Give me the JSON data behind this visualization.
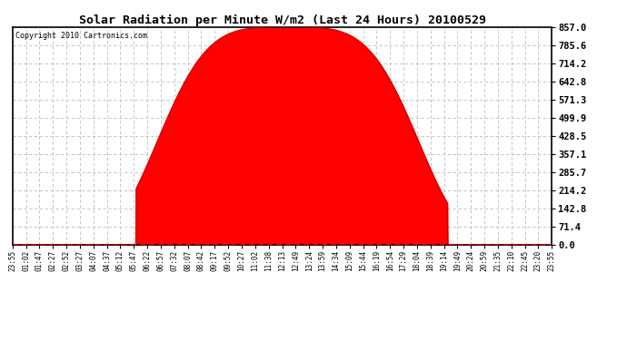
{
  "title": "Solar Radiation per Minute W/m2 (Last 24 Hours) 20100529",
  "copyright": "Copyright 2010 Cartronics.com",
  "bg_color": "#ffffff",
  "plot_bg_color": "#ffffff",
  "fill_color": "#ff0000",
  "line_color": "#cc0000",
  "dashed_line_color": "#ff0000",
  "grid_color": "#bbbbbb",
  "y_max": 857.0,
  "y_min": 0.0,
  "y_ticks": [
    0.0,
    71.4,
    142.8,
    214.2,
    285.7,
    357.1,
    428.5,
    499.9,
    571.3,
    642.8,
    714.2,
    785.6,
    857.0
  ],
  "peak_value": 857.0,
  "peak_hour": 12.25,
  "start_hour": 5.5,
  "end_hour": 19.35,
  "spike_hour": 18.65,
  "spike_value": 160.0,
  "x_tick_labels": [
    "23:55",
    "01:02",
    "01:47",
    "02:27",
    "02:52",
    "03:27",
    "04:07",
    "04:37",
    "05:12",
    "05:47",
    "06:22",
    "06:57",
    "07:32",
    "08:07",
    "08:42",
    "09:17",
    "09:52",
    "10:27",
    "11:02",
    "11:38",
    "12:13",
    "12:49",
    "13:24",
    "13:59",
    "14:34",
    "15:09",
    "15:44",
    "16:19",
    "16:54",
    "17:29",
    "18:04",
    "18:39",
    "19:14",
    "19:49",
    "20:24",
    "20:59",
    "21:35",
    "22:10",
    "22:45",
    "23:20",
    "23:55"
  ],
  "figwidth": 6.9,
  "figheight": 3.75,
  "dpi": 100
}
